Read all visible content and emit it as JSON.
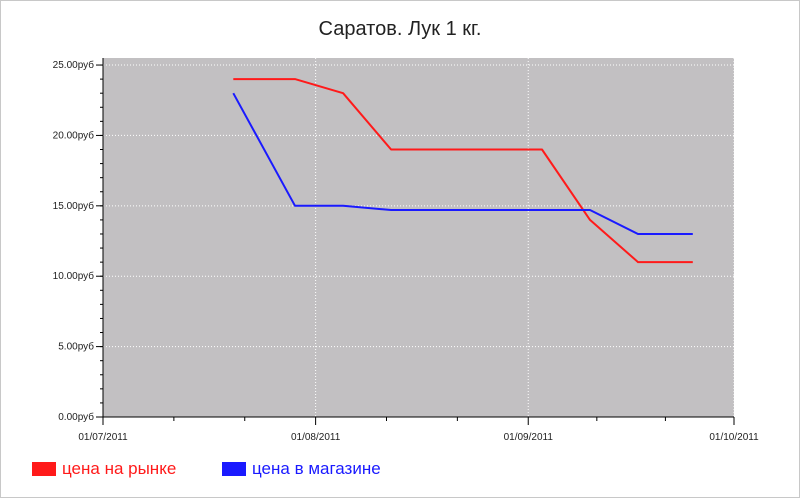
{
  "chart_data": {
    "type": "line",
    "title": "Саратов. Лук 1 кг.",
    "xlabel": "",
    "ylabel": "",
    "y_ticks": [
      {
        "value": 0,
        "label": "0.00руб"
      },
      {
        "value": 5,
        "label": "5.00руб"
      },
      {
        "value": 10,
        "label": "10.00руб"
      },
      {
        "value": 15,
        "label": "15.00руб"
      },
      {
        "value": 20,
        "label": "20.00руб"
      },
      {
        "value": 25,
        "label": "25.00руб"
      }
    ],
    "x_ticks": [
      {
        "value": "2011-07-01",
        "label": "01/07/2011"
      },
      {
        "value": "2011-08-01",
        "label": "01/08/2011"
      },
      {
        "value": "2011-09-01",
        "label": "01/09/2011"
      },
      {
        "value": "2011-10-01",
        "label": "01/10/2011"
      }
    ],
    "xlim": [
      "2011-07-01",
      "2011-10-01"
    ],
    "ylim": [
      0,
      25.5
    ],
    "grid": true,
    "legend_position": "bottom-left",
    "series": [
      {
        "name": "цена на рынке",
        "color": "#ff1a1a",
        "points": [
          {
            "x": "2011-07-20",
            "y": 24
          },
          {
            "x": "2011-07-29",
            "y": 24
          },
          {
            "x": "2011-08-05",
            "y": 23
          },
          {
            "x": "2011-08-12",
            "y": 19
          },
          {
            "x": "2011-09-03",
            "y": 19
          },
          {
            "x": "2011-09-10",
            "y": 14
          },
          {
            "x": "2011-09-17",
            "y": 11
          },
          {
            "x": "2011-09-25",
            "y": 11
          }
        ]
      },
      {
        "name": "цена в магазине",
        "color": "#1a1aff",
        "points": [
          {
            "x": "2011-07-20",
            "y": 23
          },
          {
            "x": "2011-07-29",
            "y": 15
          },
          {
            "x": "2011-08-05",
            "y": 15
          },
          {
            "x": "2011-08-12",
            "y": 14.7
          },
          {
            "x": "2011-09-03",
            "y": 14.7
          },
          {
            "x": "2011-09-10",
            "y": 14.7
          },
          {
            "x": "2011-09-17",
            "y": 13
          },
          {
            "x": "2011-09-25",
            "y": 13
          }
        ]
      }
    ]
  }
}
